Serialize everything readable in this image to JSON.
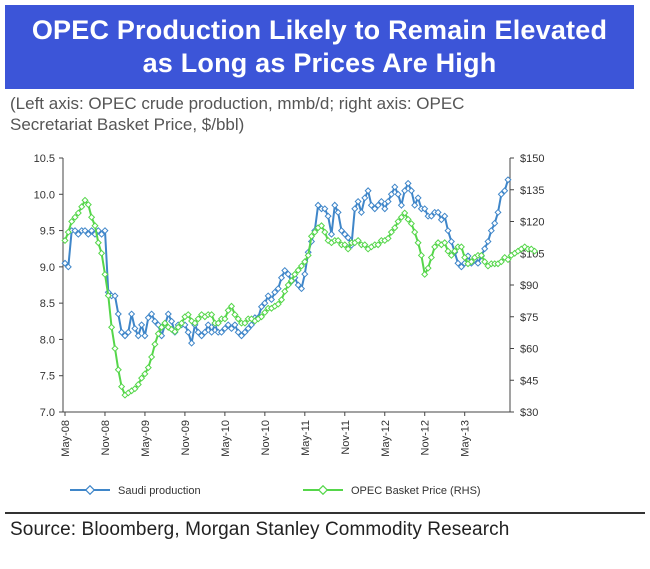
{
  "title": {
    "line1": "OPEC Production Likely to Remain Elevated",
    "line2": "as Long as Prices Are High"
  },
  "subtitle": {
    "line1": "(Left axis: OPEC crude production, mmb/d; right axis: OPEC",
    "line2": "Secretariat Basket Price, $/bbl)"
  },
  "source": "Source: Bloomberg, Morgan Stanley Commodity Research",
  "colors": {
    "banner": "#3c55d8",
    "saudi": "#3f86c9",
    "basket": "#55d64a"
  },
  "chart_data": {
    "type": "line",
    "x_tick_labels": [
      "May-08",
      "Nov-08",
      "May-09",
      "Nov-09",
      "May-10",
      "Nov-10",
      "May-11",
      "Nov-11",
      "May-12",
      "Nov-12",
      "May-13"
    ],
    "left_axis": {
      "ylim": [
        7.0,
        10.5
      ],
      "ticks": [
        "7.0",
        "7.5",
        "8.0",
        "8.5",
        "9.0",
        "9.5",
        "10.0",
        "10.5"
      ]
    },
    "right_axis": {
      "ylim": [
        30,
        150
      ],
      "ticks": [
        "$30",
        "$45",
        "$60",
        "$75",
        "$90",
        "$105",
        "$120",
        "$135",
        "$150"
      ]
    },
    "grid": false,
    "legend_position": "bottom",
    "series": [
      {
        "name": "Saudi production",
        "axis": "left",
        "color": "#3f86c9",
        "values": [
          9.05,
          9.0,
          9.5,
          9.5,
          9.45,
          9.5,
          9.5,
          9.45,
          9.5,
          9.45,
          9.5,
          9.45,
          9.5,
          8.65,
          8.6,
          8.6,
          8.35,
          8.1,
          8.05,
          8.1,
          8.35,
          8.15,
          8.05,
          8.2,
          8.05,
          8.3,
          8.35,
          8.25,
          8.2,
          8.05,
          8.2,
          8.35,
          8.25,
          8.1,
          8.2,
          8.2,
          8.2,
          8.1,
          7.95,
          8.2,
          8.1,
          8.05,
          8.1,
          8.2,
          8.1,
          8.2,
          8.1,
          8.1,
          8.15,
          8.2,
          8.15,
          8.2,
          8.1,
          8.05,
          8.1,
          8.15,
          8.2,
          8.3,
          8.3,
          8.45,
          8.5,
          8.6,
          8.55,
          8.65,
          8.7,
          8.85,
          8.95,
          8.9,
          8.8,
          8.85,
          8.75,
          8.7,
          8.9,
          9.2,
          9.35,
          9.5,
          9.85,
          9.8,
          9.8,
          9.7,
          9.45,
          9.85,
          9.75,
          9.5,
          9.45,
          9.4,
          9.3,
          9.8,
          9.9,
          9.75,
          9.95,
          10.05,
          9.85,
          9.8,
          9.85,
          9.9,
          9.8,
          9.9,
          10.0,
          10.1,
          10.0,
          9.85,
          10.05,
          10.15,
          10.05,
          9.85,
          9.95,
          9.8,
          9.8,
          9.7,
          9.7,
          9.75,
          9.75,
          9.65,
          9.7,
          9.5,
          9.35,
          9.2,
          9.05,
          9.0,
          9.05,
          9.15,
          9.05,
          9.1,
          9.05,
          9.15,
          9.25,
          9.35,
          9.5,
          9.6,
          9.75,
          10.0,
          10.05,
          10.2
        ]
      },
      {
        "name": "OPEC Basket Price (RHS)",
        "axis": "right",
        "color": "#55d64a",
        "values": [
          111,
          115,
          120,
          122,
          124,
          127,
          130,
          128,
          122,
          118,
          110,
          105,
          95,
          85,
          70,
          60,
          50,
          42,
          38,
          39,
          40,
          41,
          43,
          46,
          48,
          51,
          56,
          62,
          67,
          70,
          72,
          70,
          69,
          68,
          70,
          72,
          75,
          76,
          73,
          72,
          74,
          76,
          75,
          76,
          76,
          72,
          72,
          74,
          74,
          78,
          80,
          76,
          74,
          72,
          72,
          74,
          74,
          73,
          74,
          75,
          77,
          79,
          79,
          80,
          81,
          83,
          87,
          90,
          92,
          95,
          97,
          99,
          101,
          104,
          113,
          115,
          117,
          118,
          115,
          111,
          110,
          111,
          111,
          109,
          109,
          107,
          110,
          110,
          111,
          109,
          109,
          107,
          108,
          109,
          109,
          111,
          111,
          112,
          115,
          117,
          120,
          122,
          124,
          121,
          119,
          115,
          110,
          104,
          95,
          98,
          103,
          108,
          110,
          109,
          110,
          106,
          104,
          106,
          108,
          108,
          103,
          100,
          101,
          103,
          104,
          104,
          101,
          99,
          100,
          100,
          100,
          101,
          103,
          102,
          104,
          105,
          106,
          107,
          108,
          107,
          107,
          106
        ]
      }
    ]
  }
}
